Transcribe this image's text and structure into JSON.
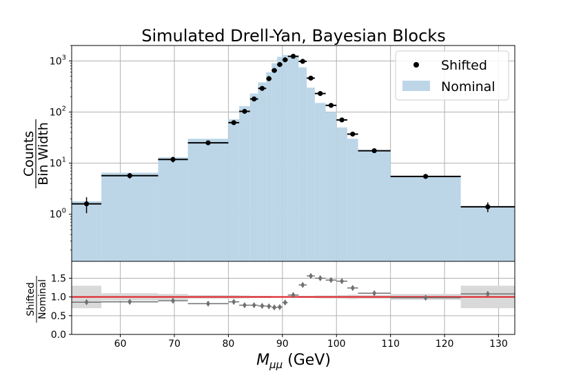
{
  "chart_data": {
    "type": "bar",
    "title": "Simulated Drell-Yan, Bayesian Blocks",
    "xlabel_main": "M",
    "xlabel_sub": "μμ",
    "xlabel_unit": " (GeV)",
    "ylabel_num": "Counts",
    "ylabel_den": "Bin Width",
    "ratio_ylabel_num": "Shifted",
    "ratio_ylabel_den": "Nominal",
    "xlim": [
      51,
      133
    ],
    "ylim_log": [
      0.12,
      2000
    ],
    "ratio_ylim": [
      0,
      1.95
    ],
    "x_ticks": [
      60,
      70,
      80,
      90,
      100,
      110,
      120,
      130
    ],
    "y_ticks": [
      {
        "value": 1,
        "base": "10",
        "exp": "0"
      },
      {
        "value": 10,
        "base": "10",
        "exp": "1"
      },
      {
        "value": 100,
        "base": "10",
        "exp": "2"
      },
      {
        "value": 1000,
        "base": "10",
        "exp": "3"
      }
    ],
    "ratio_ticks": [
      "0.0",
      "0.5",
      "1.0",
      "1.5"
    ],
    "grid": true,
    "legend_position": "top-right",
    "legend": [
      {
        "label": "Shifted",
        "kind": "marker"
      },
      {
        "label": "Nominal",
        "kind": "patch"
      }
    ],
    "colors": {
      "nominal_fill": "#bcd6e8",
      "points": "#000000",
      "ratio_points": "#707070",
      "ratio_band": "#d9d9d9",
      "reference_line": "#e0181f",
      "grid": "#b0b0b0"
    },
    "bins": [
      {
        "lo": 51.0,
        "hi": 56.5,
        "nominal": 1.8,
        "shifted": 1.6,
        "err": 0.55,
        "ratio": 0.86,
        "band": 0.3
      },
      {
        "lo": 56.5,
        "hi": 67.0,
        "nominal": 6.5,
        "shifted": 5.7,
        "err": 0.7,
        "ratio": 0.87,
        "band": 0.1
      },
      {
        "lo": 67.0,
        "hi": 72.5,
        "nominal": 13.0,
        "shifted": 11.8,
        "err": 1.5,
        "ratio": 0.9,
        "band": 0.08
      },
      {
        "lo": 72.5,
        "hi": 80.0,
        "nominal": 30.0,
        "shifted": 25.0,
        "err": 2.0,
        "ratio": 0.82,
        "band": 0.05
      },
      {
        "lo": 80.0,
        "hi": 82.0,
        "nominal": 72.0,
        "shifted": 62.0,
        "err": 5.0,
        "ratio": 0.87,
        "band": 0.05
      },
      {
        "lo": 82.0,
        "hi": 84.0,
        "nominal": 130.0,
        "shifted": 103.0,
        "err": 8.0,
        "ratio": 0.78,
        "band": 0.04
      },
      {
        "lo": 84.0,
        "hi": 85.5,
        "nominal": 230.0,
        "shifted": 180.0,
        "err": 12.0,
        "ratio": 0.78,
        "band": 0.03
      },
      {
        "lo": 85.5,
        "hi": 87.0,
        "nominal": 380.0,
        "shifted": 290.0,
        "err": 15.0,
        "ratio": 0.76,
        "band": 0.03
      },
      {
        "lo": 87.0,
        "hi": 88.0,
        "nominal": 600.0,
        "shifted": 450.0,
        "err": 20.0,
        "ratio": 0.75,
        "band": 0.03
      },
      {
        "lo": 88.0,
        "hi": 89.0,
        "nominal": 900.0,
        "shifted": 650.0,
        "err": 25.0,
        "ratio": 0.72,
        "band": 0.02
      },
      {
        "lo": 89.0,
        "hi": 90.0,
        "nominal": 1200.0,
        "shifted": 850.0,
        "err": 30.0,
        "ratio": 0.73,
        "band": 0.02
      },
      {
        "lo": 90.0,
        "hi": 91.0,
        "nominal": 1300.0,
        "shifted": 1050.0,
        "err": 32.0,
        "ratio": 0.85,
        "band": 0.02
      },
      {
        "lo": 91.0,
        "hi": 93.0,
        "nominal": 1200.0,
        "shifted": 1230.0,
        "err": 35.0,
        "ratio": 1.05,
        "band": 0.02
      },
      {
        "lo": 93.0,
        "hi": 94.5,
        "nominal": 750.0,
        "shifted": 980.0,
        "err": 30.0,
        "ratio": 1.32,
        "band": 0.03
      },
      {
        "lo": 94.5,
        "hi": 96.0,
        "nominal": 300.0,
        "shifted": 460.0,
        "err": 20.0,
        "ratio": 1.56,
        "band": 0.03
      },
      {
        "lo": 96.0,
        "hi": 98.0,
        "nominal": 150.0,
        "shifted": 230.0,
        "err": 12.0,
        "ratio": 1.5,
        "band": 0.04
      },
      {
        "lo": 98.0,
        "hi": 100.0,
        "nominal": 100.0,
        "shifted": 135.0,
        "err": 8.0,
        "ratio": 1.45,
        "band": 0.04
      },
      {
        "lo": 100.0,
        "hi": 102.0,
        "nominal": 50.0,
        "shifted": 70.0,
        "err": 5.0,
        "ratio": 1.42,
        "band": 0.05
      },
      {
        "lo": 102.0,
        "hi": 104.0,
        "nominal": 30.0,
        "shifted": 37.0,
        "err": 3.0,
        "ratio": 1.24,
        "band": 0.06
      },
      {
        "lo": 104.0,
        "hi": 110.0,
        "nominal": 17.0,
        "shifted": 17.5,
        "err": 1.2,
        "ratio": 1.1,
        "band": 0.05
      },
      {
        "lo": 110.0,
        "hi": 123.0,
        "nominal": 5.5,
        "shifted": 5.5,
        "err": 0.4,
        "ratio": 0.98,
        "band": 0.08
      },
      {
        "lo": 123.0,
        "hi": 133.0,
        "nominal": 1.4,
        "shifted": 1.4,
        "err": 0.3,
        "ratio": 1.08,
        "band": 0.3
      }
    ]
  }
}
